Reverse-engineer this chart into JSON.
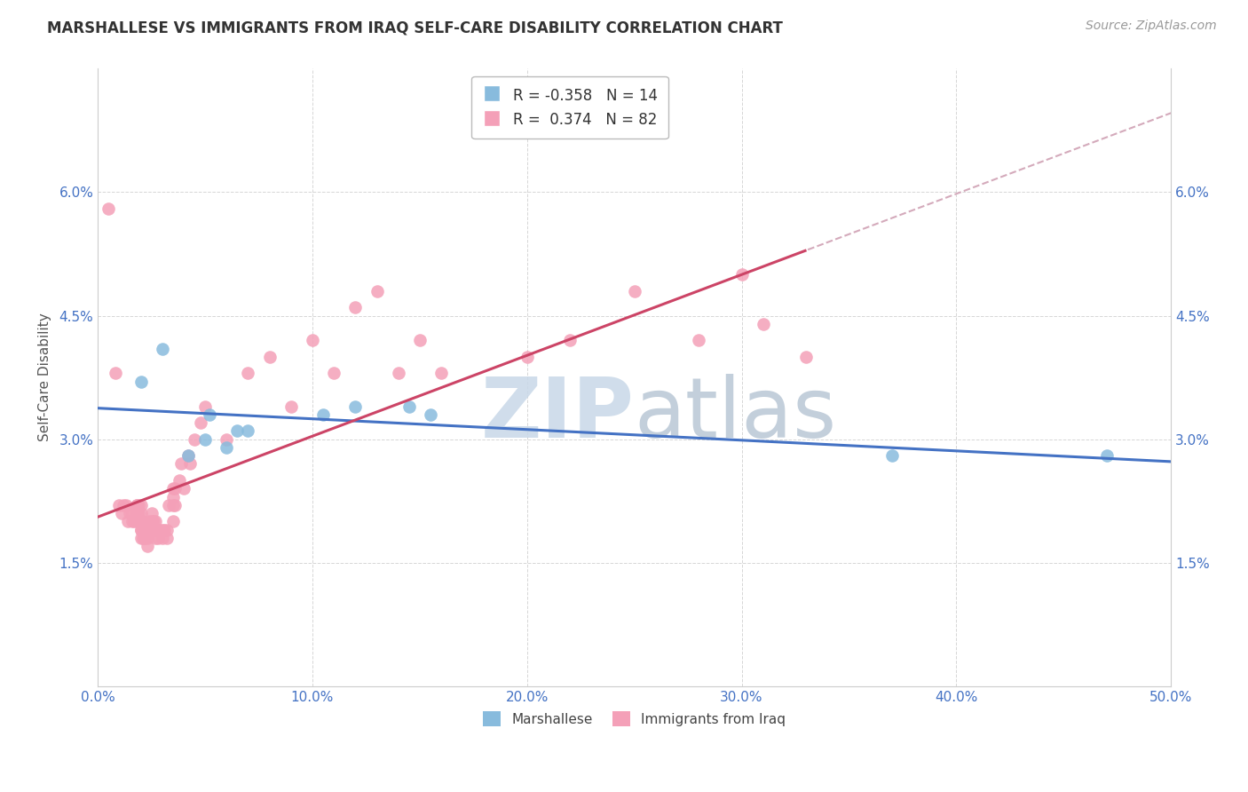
{
  "title": "MARSHALLESE VS IMMIGRANTS FROM IRAQ SELF-CARE DISABILITY CORRELATION CHART",
  "source": "Source: ZipAtlas.com",
  "ylabel": "Self-Care Disability",
  "xlim": [
    0.0,
    0.5
  ],
  "ylim": [
    0.0,
    0.075
  ],
  "xtick_vals": [
    0.0,
    0.1,
    0.2,
    0.3,
    0.4,
    0.5
  ],
  "xticklabels": [
    "0.0%",
    "10.0%",
    "20.0%",
    "30.0%",
    "40.0%",
    "50.0%"
  ],
  "ytick_vals": [
    0.015,
    0.03,
    0.045,
    0.06
  ],
  "yticklabels": [
    "1.5%",
    "3.0%",
    "4.5%",
    "6.0%"
  ],
  "blue_color": "#88BBDD",
  "pink_color": "#F4A0B8",
  "blue_line_color": "#4472C4",
  "pink_line_color": "#CC4466",
  "dashed_line_color": "#D4AABB",
  "tick_color": "#4472C4",
  "legend_blue_label": "Marshallese",
  "legend_pink_label": "Immigrants from Iraq",
  "R_blue": -0.358,
  "N_blue": 14,
  "R_pink": 0.374,
  "N_pink": 82,
  "watermark_zip_color": "#C8D8E8",
  "watermark_atlas_color": "#AABBCC",
  "background_color": "#FFFFFF",
  "grid_color": "#CCCCCC",
  "blue_points_x": [
    0.02,
    0.03,
    0.042,
    0.05,
    0.052,
    0.06,
    0.065,
    0.07,
    0.105,
    0.12,
    0.145,
    0.155,
    0.37,
    0.47
  ],
  "blue_points_y": [
    0.037,
    0.041,
    0.028,
    0.03,
    0.033,
    0.029,
    0.031,
    0.031,
    0.033,
    0.034,
    0.034,
    0.033,
    0.028,
    0.028
  ],
  "pink_points_x": [
    0.005,
    0.008,
    0.01,
    0.011,
    0.012,
    0.013,
    0.014,
    0.015,
    0.016,
    0.016,
    0.017,
    0.018,
    0.018,
    0.018,
    0.018,
    0.019,
    0.019,
    0.019,
    0.02,
    0.02,
    0.02,
    0.02,
    0.02,
    0.02,
    0.021,
    0.021,
    0.021,
    0.022,
    0.022,
    0.023,
    0.023,
    0.024,
    0.024,
    0.025,
    0.025,
    0.025,
    0.026,
    0.026,
    0.027,
    0.027,
    0.027,
    0.028,
    0.028,
    0.029,
    0.03,
    0.03,
    0.031,
    0.032,
    0.032,
    0.033,
    0.035,
    0.035,
    0.035,
    0.035,
    0.036,
    0.036,
    0.038,
    0.039,
    0.04,
    0.042,
    0.043,
    0.045,
    0.048,
    0.05,
    0.06,
    0.07,
    0.08,
    0.09,
    0.1,
    0.11,
    0.12,
    0.13,
    0.14,
    0.15,
    0.16,
    0.2,
    0.22,
    0.25,
    0.28,
    0.3,
    0.31,
    0.33
  ],
  "pink_points_y": [
    0.058,
    0.038,
    0.022,
    0.021,
    0.022,
    0.022,
    0.02,
    0.021,
    0.02,
    0.021,
    0.02,
    0.021,
    0.022,
    0.022,
    0.02,
    0.02,
    0.021,
    0.022,
    0.018,
    0.019,
    0.02,
    0.021,
    0.022,
    0.019,
    0.018,
    0.019,
    0.02,
    0.018,
    0.019,
    0.017,
    0.018,
    0.019,
    0.02,
    0.019,
    0.02,
    0.021,
    0.019,
    0.02,
    0.018,
    0.019,
    0.02,
    0.018,
    0.019,
    0.019,
    0.018,
    0.019,
    0.019,
    0.018,
    0.019,
    0.022,
    0.022,
    0.023,
    0.024,
    0.02,
    0.022,
    0.024,
    0.025,
    0.027,
    0.024,
    0.028,
    0.027,
    0.03,
    0.032,
    0.034,
    0.03,
    0.038,
    0.04,
    0.034,
    0.042,
    0.038,
    0.046,
    0.048,
    0.038,
    0.042,
    0.038,
    0.04,
    0.042,
    0.048,
    0.042,
    0.05,
    0.044,
    0.04
  ]
}
